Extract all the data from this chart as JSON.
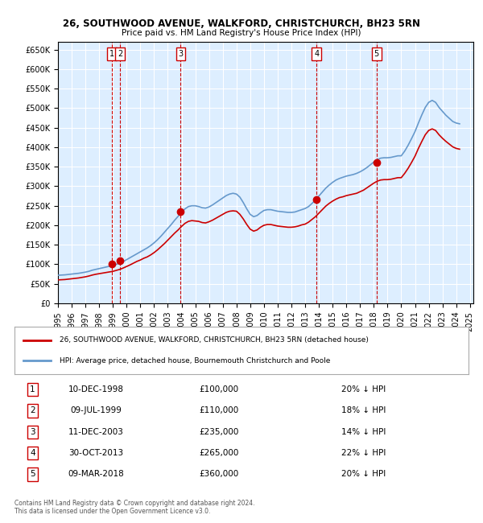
{
  "title": "26, SOUTHWOOD AVENUE, WALKFORD, CHRISTCHURCH, BH23 5RN",
  "subtitle": "Price paid vs. HM Land Registry's House Price Index (HPI)",
  "xlabel": "",
  "ylabel": "",
  "ylim": [
    0,
    670000
  ],
  "yticks": [
    0,
    50000,
    100000,
    150000,
    200000,
    250000,
    300000,
    350000,
    400000,
    450000,
    500000,
    550000,
    600000,
    650000
  ],
  "background_color": "#ddeeff",
  "plot_bg": "#ddeeff",
  "legend_line1": "26, SOUTHWOOD AVENUE, WALKFORD, CHRISTCHURCH, BH23 5RN (detached house)",
  "legend_line2": "HPI: Average price, detached house, Bournemouth Christchurch and Poole",
  "footer1": "Contains HM Land Registry data © Crown copyright and database right 2024.",
  "footer2": "This data is licensed under the Open Government Licence v3.0.",
  "sales": [
    {
      "num": 1,
      "date": "10-DEC-1998",
      "price": 100000,
      "pct": "20%",
      "x_year": 1998.94
    },
    {
      "num": 2,
      "date": "09-JUL-1999",
      "price": 110000,
      "pct": "18%",
      "x_year": 1999.52
    },
    {
      "num": 3,
      "date": "11-DEC-2003",
      "price": 235000,
      "pct": "14%",
      "x_year": 2003.94
    },
    {
      "num": 4,
      "date": "30-OCT-2013",
      "price": 265000,
      "pct": "22%",
      "x_year": 2013.83
    },
    {
      "num": 5,
      "date": "09-MAR-2018",
      "price": 360000,
      "pct": "20%",
      "x_year": 2018.19
    }
  ],
  "hpi_color": "#6699cc",
  "sale_line_color": "#cc0000",
  "sale_dot_color": "#cc0000",
  "vline_color": "#cc0000",
  "box_color": "#cc0000",
  "hpi_data_x": [
    1995.0,
    1995.25,
    1995.5,
    1995.75,
    1996.0,
    1996.25,
    1996.5,
    1996.75,
    1997.0,
    1997.25,
    1997.5,
    1997.75,
    1998.0,
    1998.25,
    1998.5,
    1998.75,
    1999.0,
    1999.25,
    1999.5,
    1999.75,
    2000.0,
    2000.25,
    2000.5,
    2000.75,
    2001.0,
    2001.25,
    2001.5,
    2001.75,
    2002.0,
    2002.25,
    2002.5,
    2002.75,
    2003.0,
    2003.25,
    2003.5,
    2003.75,
    2004.0,
    2004.25,
    2004.5,
    2004.75,
    2005.0,
    2005.25,
    2005.5,
    2005.75,
    2006.0,
    2006.25,
    2006.5,
    2006.75,
    2007.0,
    2007.25,
    2007.5,
    2007.75,
    2008.0,
    2008.25,
    2008.5,
    2008.75,
    2009.0,
    2009.25,
    2009.5,
    2009.75,
    2010.0,
    2010.25,
    2010.5,
    2010.75,
    2011.0,
    2011.25,
    2011.5,
    2011.75,
    2012.0,
    2012.25,
    2012.5,
    2012.75,
    2013.0,
    2013.25,
    2013.5,
    2013.75,
    2014.0,
    2014.25,
    2014.5,
    2014.75,
    2015.0,
    2015.25,
    2015.5,
    2015.75,
    2016.0,
    2016.25,
    2016.5,
    2016.75,
    2017.0,
    2017.25,
    2017.5,
    2017.75,
    2018.0,
    2018.25,
    2018.5,
    2018.75,
    2019.0,
    2019.25,
    2019.5,
    2019.75,
    2020.0,
    2020.25,
    2020.5,
    2020.75,
    2021.0,
    2021.25,
    2021.5,
    2021.75,
    2022.0,
    2022.25,
    2022.5,
    2022.75,
    2023.0,
    2023.25,
    2023.5,
    2023.75,
    2024.0,
    2024.25
  ],
  "hpi_data_y": [
    72000,
    72500,
    73000,
    74000,
    75000,
    76000,
    77000,
    78500,
    80000,
    82000,
    85000,
    87000,
    89000,
    91000,
    93000,
    95000,
    97000,
    100000,
    103000,
    107000,
    112000,
    117000,
    122000,
    127000,
    132000,
    137000,
    142000,
    148000,
    155000,
    163000,
    172000,
    182000,
    192000,
    202000,
    213000,
    223000,
    233000,
    242000,
    248000,
    250000,
    250000,
    248000,
    245000,
    244000,
    247000,
    252000,
    258000,
    264000,
    270000,
    276000,
    280000,
    282000,
    280000,
    272000,
    258000,
    242000,
    228000,
    222000,
    225000,
    232000,
    238000,
    240000,
    240000,
    238000,
    236000,
    235000,
    234000,
    233000,
    233000,
    234000,
    237000,
    240000,
    243000,
    248000,
    256000,
    265000,
    275000,
    285000,
    295000,
    303000,
    310000,
    316000,
    320000,
    323000,
    326000,
    328000,
    330000,
    333000,
    337000,
    342000,
    348000,
    355000,
    362000,
    368000,
    372000,
    373000,
    373000,
    374000,
    376000,
    378000,
    378000,
    390000,
    405000,
    422000,
    440000,
    462000,
    483000,
    502000,
    515000,
    520000,
    515000,
    502000,
    492000,
    482000,
    474000,
    466000,
    462000,
    460000
  ],
  "red_hpi_data_x": [
    1995.0,
    1995.25,
    1995.5,
    1995.75,
    1996.0,
    1996.25,
    1996.5,
    1996.75,
    1997.0,
    1997.25,
    1997.5,
    1997.75,
    1998.0,
    1998.25,
    1998.5,
    1998.75,
    1999.0,
    1999.25,
    1999.5,
    1999.75,
    2000.0,
    2000.25,
    2000.5,
    2000.75,
    2001.0,
    2001.25,
    2001.5,
    2001.75,
    2002.0,
    2002.25,
    2002.5,
    2002.75,
    2003.0,
    2003.25,
    2003.5,
    2003.75,
    2004.0,
    2004.25,
    2004.5,
    2004.75,
    2005.0,
    2005.25,
    2005.5,
    2005.75,
    2006.0,
    2006.25,
    2006.5,
    2006.75,
    2007.0,
    2007.25,
    2007.5,
    2007.75,
    2008.0,
    2008.25,
    2008.5,
    2008.75,
    2009.0,
    2009.25,
    2009.5,
    2009.75,
    2010.0,
    2010.25,
    2010.5,
    2010.75,
    2011.0,
    2011.25,
    2011.5,
    2011.75,
    2012.0,
    2012.25,
    2012.5,
    2012.75,
    2013.0,
    2013.25,
    2013.5,
    2013.75,
    2014.0,
    2014.25,
    2014.5,
    2014.75,
    2015.0,
    2015.25,
    2015.5,
    2015.75,
    2016.0,
    2016.25,
    2016.5,
    2016.75,
    2017.0,
    2017.25,
    2017.5,
    2017.75,
    2018.0,
    2018.25,
    2018.5,
    2018.75,
    2019.0,
    2019.25,
    2019.5,
    2019.75,
    2020.0,
    2020.25,
    2020.5,
    2020.75,
    2021.0,
    2021.25,
    2021.5,
    2021.75,
    2022.0,
    2022.25,
    2022.5,
    2022.75,
    2023.0,
    2023.25,
    2023.5,
    2023.75,
    2024.0,
    2024.25
  ],
  "red_hpi_data_y": [
    60000,
    60500,
    61000,
    62000,
    63000,
    64000,
    65000,
    66500,
    68000,
    70000,
    72500,
    74500,
    76000,
    77500,
    79000,
    80500,
    82000,
    84500,
    87000,
    90500,
    94500,
    98500,
    103000,
    107500,
    111000,
    115500,
    119000,
    124000,
    130000,
    137000,
    145000,
    153000,
    162000,
    171000,
    180000,
    188000,
    197000,
    205000,
    210000,
    212000,
    211000,
    210000,
    207000,
    206000,
    209000,
    213000,
    218000,
    223000,
    228000,
    233000,
    236000,
    237000,
    236000,
    228000,
    216000,
    202000,
    190000,
    185000,
    188000,
    195000,
    200000,
    202000,
    202000,
    200000,
    198000,
    197000,
    196000,
    195000,
    195000,
    196000,
    198000,
    201000,
    203000,
    208000,
    215000,
    222000,
    231000,
    240000,
    249000,
    256000,
    262000,
    267000,
    271000,
    273000,
    276000,
    278000,
    280000,
    282000,
    286000,
    290000,
    296000,
    302000,
    308000,
    313000,
    316000,
    317000,
    317000,
    318000,
    320000,
    322000,
    322000,
    333000,
    346000,
    361000,
    377000,
    397000,
    415000,
    432000,
    443000,
    447000,
    443000,
    432000,
    423000,
    415000,
    408000,
    401000,
    397000,
    395000
  ],
  "xlim": [
    1995.0,
    2025.25
  ],
  "xtick_years": [
    1995,
    1996,
    1997,
    1998,
    1999,
    2000,
    2001,
    2002,
    2003,
    2004,
    2005,
    2006,
    2007,
    2008,
    2009,
    2010,
    2011,
    2012,
    2013,
    2014,
    2015,
    2016,
    2017,
    2018,
    2019,
    2020,
    2021,
    2022,
    2023,
    2024,
    2025
  ]
}
